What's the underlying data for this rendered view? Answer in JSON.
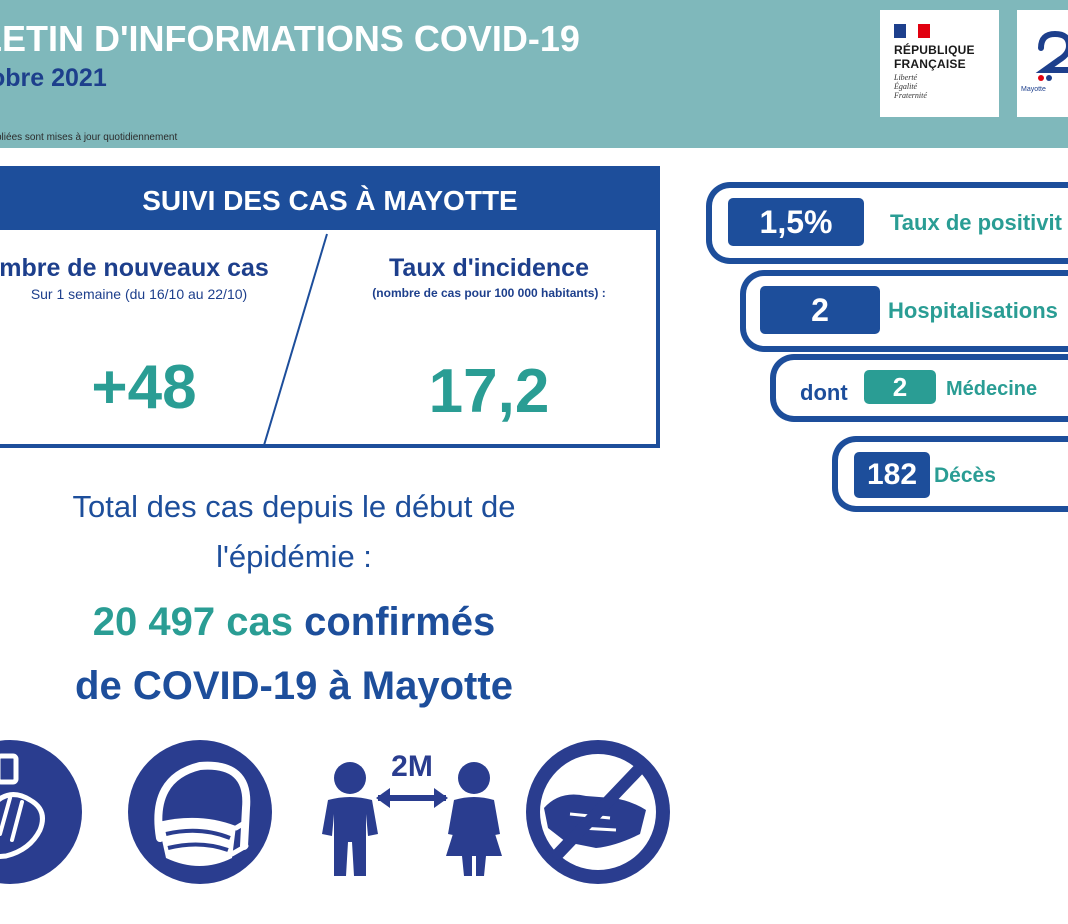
{
  "header": {
    "title": "LETIN D'INFORMATIONS COVID-19",
    "date": "obre 2021",
    "note": "bliées sont mises à jour quotidiennement",
    "rf_logo": {
      "line1": "RÉPUBLIQUE",
      "line2": "FRANÇAISE",
      "motto": [
        "Liberté",
        "Égalité",
        "Fraternité"
      ]
    },
    "ars_logo": {
      "text": "Mayotte"
    }
  },
  "suivi": {
    "title": "SUIVI DES CAS À MAYOTTE",
    "new_cases": {
      "label": "mbre de nouveaux cas",
      "sub": "Sur 1 semaine (du 16/10 au 22/10)",
      "value": "+48"
    },
    "incidence": {
      "label": "Taux d'incidence",
      "sub": "(nombre de cas pour 100 000 habitants) :",
      "value": "17,2"
    }
  },
  "total": {
    "intro_line1": "Total des cas depuis le début de",
    "intro_line2": "l'épidémie :",
    "count": "20 497 cas",
    "confirmed": "confirmés",
    "line2": "de COVID-19 à Mayotte"
  },
  "stats": {
    "positivity": {
      "value": "1,5%",
      "label": "Taux de positivit"
    },
    "hospital": {
      "value": "2",
      "label": "Hospitalisations"
    },
    "medecine": {
      "prefix": "dont",
      "value": "2",
      "label": "Médecine"
    },
    "deaths": {
      "value": "182",
      "label": "Décès"
    }
  },
  "icons": [
    "hand-washing-icon",
    "face-mask-icon",
    "distance-icon",
    "no-handshake-icon"
  ],
  "distance_label": "2M",
  "colors": {
    "header": "#7fb8bb",
    "navy": "#1d4e9b",
    "teal": "#2a9d94",
    "dark_navy": "#1d3f8c"
  }
}
